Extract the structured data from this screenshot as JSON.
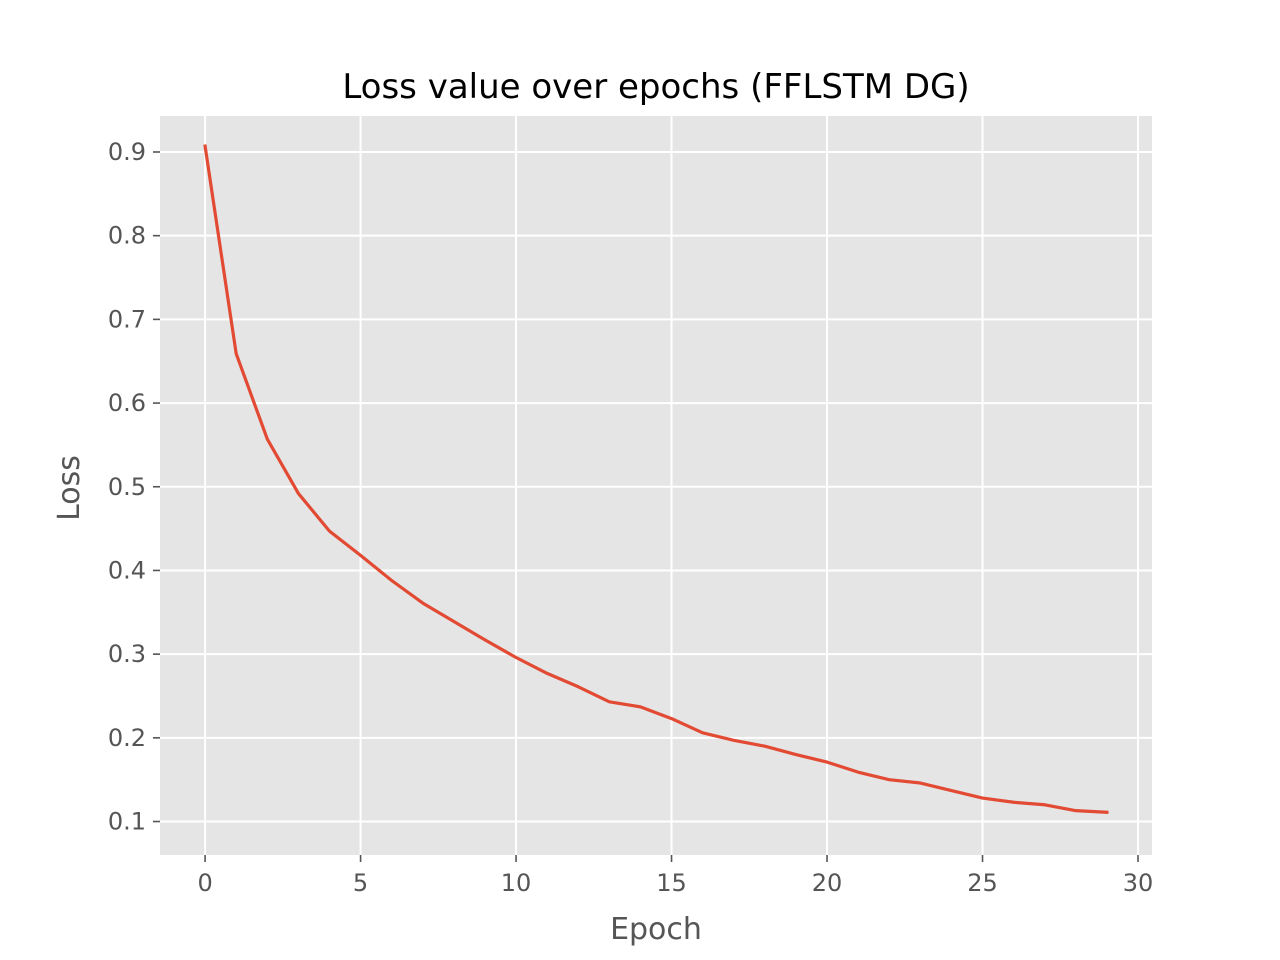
{
  "chart_data": {
    "type": "line",
    "title": "Loss value over epochs (FFLSTM DG)",
    "xlabel": "Epoch",
    "ylabel": "Loss",
    "xlim": [
      -1.45,
      30.45
    ],
    "ylim": [
      0.06,
      0.943
    ],
    "xticks": [
      0,
      5,
      10,
      15,
      20,
      25,
      30
    ],
    "yticks": [
      0.1,
      0.2,
      0.3,
      0.4,
      0.5,
      0.6,
      0.7,
      0.8,
      0.9
    ],
    "grid": true,
    "background": "#e5e5e5",
    "grid_color": "#ffffff",
    "series": [
      {
        "color": "#e24a33",
        "x": [
          0,
          1,
          2,
          3,
          4,
          5,
          6,
          7,
          8,
          9,
          10,
          11,
          12,
          13,
          14,
          15,
          16,
          17,
          18,
          19,
          20,
          21,
          22,
          23,
          24,
          25,
          26,
          27,
          28,
          29
        ],
        "y": [
          0.907,
          0.659,
          0.557,
          0.492,
          0.447,
          0.418,
          0.388,
          0.361,
          0.339,
          0.317,
          0.296,
          0.277,
          0.261,
          0.243,
          0.237,
          0.223,
          0.206,
          0.197,
          0.19,
          0.18,
          0.171,
          0.159,
          0.15,
          0.146,
          0.137,
          0.128,
          0.123,
          0.12,
          0.113,
          0.111
        ]
      }
    ]
  }
}
